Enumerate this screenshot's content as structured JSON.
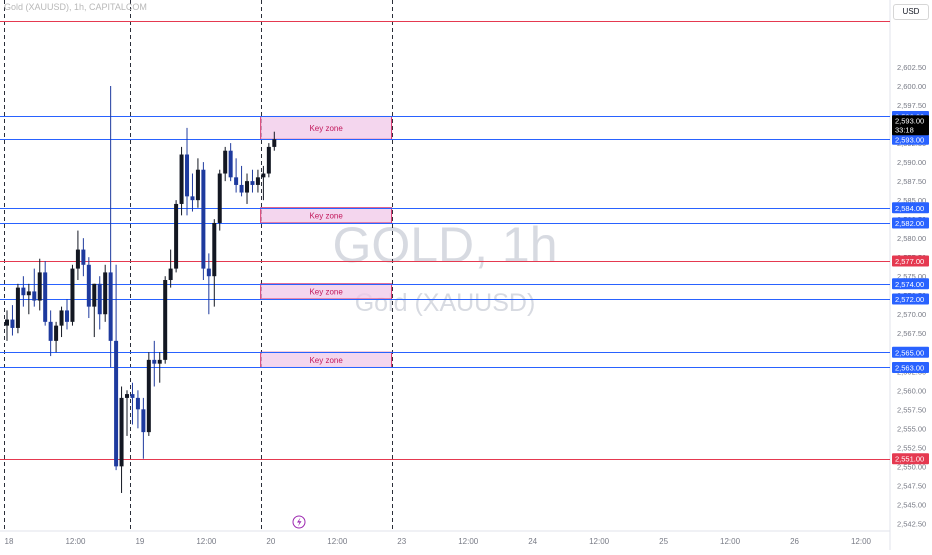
{
  "header": {
    "symbol_line": "Gold (XAUUSD), 1h, CAPITALCOM"
  },
  "watermark": {
    "title": "GOLD, 1h",
    "subtitle": "Gold (XAUUSD)"
  },
  "currency_button": "USD",
  "last_price": {
    "price": "2,593.00",
    "countdown": "33:18"
  },
  "colors": {
    "bull": "#131722",
    "bear": "#1e3a9e",
    "red_level": "#e53950",
    "blue_level": "#2962ff",
    "zone_fill": "#f0c8e8",
    "zone_border": "#d6336c",
    "axis_text": "#787b86",
    "alert_icon": "#9c27b0"
  },
  "alert_icon": "lightning-bolt-icon",
  "chart_data": {
    "type": "candlestick",
    "symbol": "XAUUSD",
    "interval": "1h",
    "ylim": [
      2541.5,
      2610
    ],
    "y_ticks": [
      "2,542.50",
      "2,545.00",
      "2,547.50",
      "2,550.00",
      "2,552.50",
      "2,555.00",
      "2,557.50",
      "2,560.00",
      "2,562.50",
      "2,565.00",
      "2,567.50",
      "2,570.00",
      "2,572.50",
      "2,575.00",
      "2,577.50",
      "2,580.00",
      "2,582.50",
      "2,585.00",
      "2,587.50",
      "2,590.00",
      "2,592.50",
      "2,595.00",
      "2,597.50",
      "2,600.00",
      "2,602.50"
    ],
    "x_ticks": [
      {
        "label": "18",
        "t": 0
      },
      {
        "label": "12:00",
        "t": 12
      },
      {
        "label": "19",
        "t": 24
      },
      {
        "label": "12:00",
        "t": 36
      },
      {
        "label": "20",
        "t": 48
      },
      {
        "label": "12:00",
        "t": 60
      },
      {
        "label": "23",
        "t": 72
      },
      {
        "label": "12:00",
        "t": 84
      },
      {
        "label": "24",
        "t": 96
      },
      {
        "label": "12:00",
        "t": 108
      },
      {
        "label": "25",
        "t": 120
      },
      {
        "label": "12:00",
        "t": 132
      },
      {
        "label": "26",
        "t": 144
      },
      {
        "label": "12:00",
        "t": 156
      }
    ],
    "session_separators_t": [
      -0.5,
      22.5,
      46.5,
      70.5
    ],
    "levels": [
      {
        "price": 2608.5,
        "kind": "red",
        "label": ""
      },
      {
        "price": 2596.0,
        "kind": "blue",
        "label": "2,596.00"
      },
      {
        "price": 2593.0,
        "kind": "blue",
        "label": "2,593.00"
      },
      {
        "price": 2584.0,
        "kind": "blue",
        "label": "2,584.00"
      },
      {
        "price": 2582.0,
        "kind": "blue",
        "label": "2,582.00"
      },
      {
        "price": 2577.0,
        "kind": "red",
        "label": "2,577.00"
      },
      {
        "price": 2574.0,
        "kind": "blue",
        "label": "2,574.00"
      },
      {
        "price": 2572.0,
        "kind": "blue",
        "label": "2,572.00"
      },
      {
        "price": 2565.0,
        "kind": "blue",
        "label": "2,565.00"
      },
      {
        "price": 2563.0,
        "kind": "blue",
        "label": "2,563.00"
      },
      {
        "price": 2551.0,
        "kind": "red",
        "label": "2,551.00"
      }
    ],
    "zones": [
      {
        "label": "Key zone",
        "top": 2596.0,
        "bottom": 2593.0,
        "t_start": 46.5,
        "t_end": 70.5
      },
      {
        "label": "Key zone",
        "top": 2584.0,
        "bottom": 2582.0,
        "t_start": 46.5,
        "t_end": 70.5
      },
      {
        "label": "Key zone",
        "top": 2574.0,
        "bottom": 2572.0,
        "t_start": 46.5,
        "t_end": 70.5
      },
      {
        "label": "Key zone",
        "top": 2565.0,
        "bottom": 2563.0,
        "t_start": 46.5,
        "t_end": 70.5
      }
    ],
    "candles": [
      {
        "o": 2568.5,
        "h": 2570.5,
        "l": 2566.5,
        "c": 2569.3
      },
      {
        "o": 2569.3,
        "h": 2571.2,
        "l": 2567.2,
        "c": 2568.2
      },
      {
        "o": 2568.2,
        "h": 2574.0,
        "l": 2567.5,
        "c": 2573.5
      },
      {
        "o": 2573.5,
        "h": 2575.0,
        "l": 2571.0,
        "c": 2572.5
      },
      {
        "o": 2572.5,
        "h": 2574.0,
        "l": 2570.0,
        "c": 2573.0
      },
      {
        "o": 2573.0,
        "h": 2576.0,
        "l": 2571.0,
        "c": 2571.8
      },
      {
        "o": 2571.8,
        "h": 2577.3,
        "l": 2570.5,
        "c": 2575.5
      },
      {
        "o": 2575.5,
        "h": 2577.0,
        "l": 2568.5,
        "c": 2569.0
      },
      {
        "o": 2569.0,
        "h": 2570.5,
        "l": 2564.5,
        "c": 2566.5
      },
      {
        "o": 2566.5,
        "h": 2569.0,
        "l": 2565.0,
        "c": 2568.5
      },
      {
        "o": 2568.5,
        "h": 2571.0,
        "l": 2567.0,
        "c": 2570.5
      },
      {
        "o": 2570.5,
        "h": 2572.0,
        "l": 2568.0,
        "c": 2569.0
      },
      {
        "o": 2569.0,
        "h": 2576.5,
        "l": 2568.5,
        "c": 2576.0
      },
      {
        "o": 2576.0,
        "h": 2581.0,
        "l": 2574.5,
        "c": 2578.5
      },
      {
        "o": 2578.5,
        "h": 2580.0,
        "l": 2575.0,
        "c": 2576.5
      },
      {
        "o": 2576.5,
        "h": 2577.5,
        "l": 2569.5,
        "c": 2571.0
      },
      {
        "o": 2571.0,
        "h": 2574.0,
        "l": 2567.0,
        "c": 2574.0
      },
      {
        "o": 2574.0,
        "h": 2575.0,
        "l": 2568.0,
        "c": 2570.0
      },
      {
        "o": 2570.0,
        "h": 2576.5,
        "l": 2569.0,
        "c": 2575.5
      },
      {
        "o": 2575.5,
        "h": 2600.0,
        "l": 2563.0,
        "c": 2566.5
      },
      {
        "o": 2566.5,
        "h": 2576.5,
        "l": 2549.5,
        "c": 2550.0
      },
      {
        "o": 2550.0,
        "h": 2560.5,
        "l": 2546.5,
        "c": 2559.0
      },
      {
        "o": 2559.0,
        "h": 2560.0,
        "l": 2554.0,
        "c": 2559.5
      },
      {
        "o": 2559.5,
        "h": 2561.0,
        "l": 2555.5,
        "c": 2559.0
      },
      {
        "o": 2559.0,
        "h": 2560.0,
        "l": 2555.0,
        "c": 2557.5
      },
      {
        "o": 2557.5,
        "h": 2559.0,
        "l": 2551.0,
        "c": 2554.5
      },
      {
        "o": 2554.5,
        "h": 2565.0,
        "l": 2554.0,
        "c": 2564.0
      },
      {
        "o": 2564.0,
        "h": 2566.5,
        "l": 2560.5,
        "c": 2563.5
      },
      {
        "o": 2563.5,
        "h": 2565.0,
        "l": 2561.0,
        "c": 2564.0
      },
      {
        "o": 2564.0,
        "h": 2575.0,
        "l": 2563.5,
        "c": 2574.5
      },
      {
        "o": 2574.5,
        "h": 2578.5,
        "l": 2573.5,
        "c": 2576.0
      },
      {
        "o": 2576.0,
        "h": 2585.0,
        "l": 2575.5,
        "c": 2584.5
      },
      {
        "o": 2584.5,
        "h": 2592.0,
        "l": 2583.0,
        "c": 2591.0
      },
      {
        "o": 2591.0,
        "h": 2594.5,
        "l": 2583.0,
        "c": 2585.5
      },
      {
        "o": 2585.5,
        "h": 2588.5,
        "l": 2583.5,
        "c": 2585.0
      },
      {
        "o": 2585.0,
        "h": 2590.5,
        "l": 2584.0,
        "c": 2589.0
      },
      {
        "o": 2589.0,
        "h": 2590.0,
        "l": 2574.5,
        "c": 2576.0
      },
      {
        "o": 2576.0,
        "h": 2578.0,
        "l": 2570.0,
        "c": 2575.0
      },
      {
        "o": 2575.0,
        "h": 2582.5,
        "l": 2571.0,
        "c": 2582.0
      },
      {
        "o": 2582.0,
        "h": 2589.0,
        "l": 2581.0,
        "c": 2588.5
      },
      {
        "o": 2588.5,
        "h": 2592.0,
        "l": 2587.5,
        "c": 2591.5
      },
      {
        "o": 2591.5,
        "h": 2592.5,
        "l": 2587.5,
        "c": 2588.0
      },
      {
        "o": 2588.0,
        "h": 2590.5,
        "l": 2586.0,
        "c": 2587.0
      },
      {
        "o": 2587.0,
        "h": 2589.5,
        "l": 2585.5,
        "c": 2586.0
      },
      {
        "o": 2586.0,
        "h": 2588.5,
        "l": 2584.5,
        "c": 2587.5
      },
      {
        "o": 2587.5,
        "h": 2589.0,
        "l": 2586.0,
        "c": 2587.0
      },
      {
        "o": 2587.0,
        "h": 2589.0,
        "l": 2586.0,
        "c": 2588.0
      },
      {
        "o": 2588.0,
        "h": 2589.5,
        "l": 2585.0,
        "c": 2588.5
      },
      {
        "o": 2588.5,
        "h": 2592.5,
        "l": 2588.0,
        "c": 2592.0
      },
      {
        "o": 2592.0,
        "h": 2594.0,
        "l": 2591.5,
        "c": 2593.0
      }
    ]
  }
}
